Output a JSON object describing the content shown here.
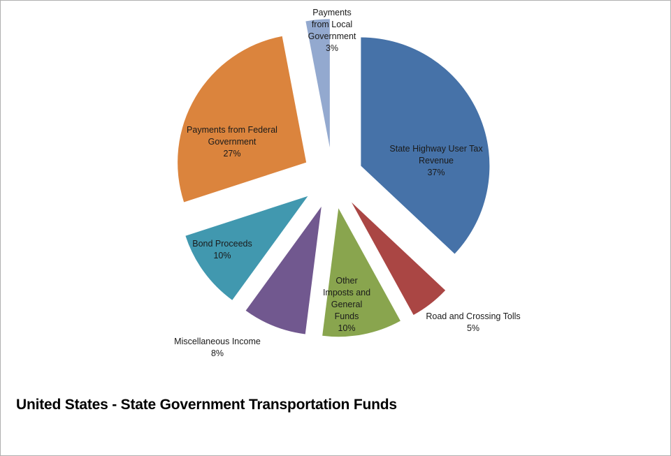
{
  "chart_data": {
    "type": "pie",
    "title": "United States - State Government Transportation Funds",
    "exploded": true,
    "start": "12 o'clock",
    "direction": "clockwise",
    "categories": [
      "State Highway User Tax Revenue",
      "Road and Crossing Tolls",
      "Other Imposts and General Funds",
      "Miscellaneous Income",
      "Bond Proceeds",
      "Payments from Federal Government",
      "Payments from Local Government"
    ],
    "values": [
      37,
      5,
      10,
      8,
      10,
      27,
      3
    ],
    "unit": "%",
    "data_labels": [
      [
        "State Highway User Tax",
        "Revenue",
        "37%"
      ],
      [
        "Road and Crossing Tolls",
        "5%"
      ],
      [
        "Other",
        "Imposts and",
        "General",
        "Funds",
        "10%"
      ],
      [
        "Miscellaneous Income",
        "8%"
      ],
      [
        "Bond Proceeds",
        "10%"
      ],
      [
        "Payments from Federal",
        "Government",
        "27%"
      ],
      [
        "Payments",
        "from Local",
        "Government",
        "3%"
      ]
    ],
    "colors": [
      "#4672A8",
      "#AA4644",
      "#89A54E",
      "#71588F",
      "#4198AF",
      "#DB843D",
      "#93A9CF"
    ],
    "legend": "none"
  }
}
